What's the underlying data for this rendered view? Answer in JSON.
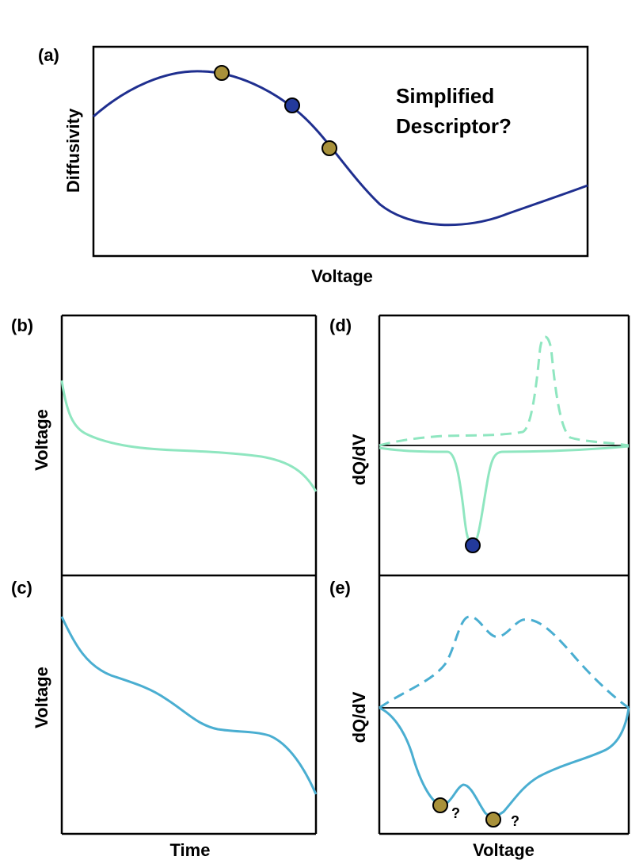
{
  "panels": {
    "a": {
      "tag": "(a)",
      "ylabel": "Diffusivity",
      "xlabel": "Voltage",
      "annotation_line1": "Simplified",
      "annotation_line2": "Descriptor?"
    },
    "b": {
      "tag": "(b)",
      "ylabel": "Voltage"
    },
    "c": {
      "tag": "(c)",
      "ylabel": "Voltage",
      "xlabel": "Time"
    },
    "d": {
      "tag": "(d)",
      "ylabel": "dQ/dV"
    },
    "e": {
      "tag": "(e)",
      "ylabel": "dQ/dV",
      "xlabel": "Voltage",
      "question1": "?",
      "question2": "?"
    }
  },
  "colors": {
    "diffusivity_curve": "#1f2f8f",
    "curve_b": "#8fe6c0",
    "curve_c": "#4aaed1",
    "marker_gold": "#a8913a",
    "marker_blue": "#233a9c",
    "axis": "#000000"
  }
}
